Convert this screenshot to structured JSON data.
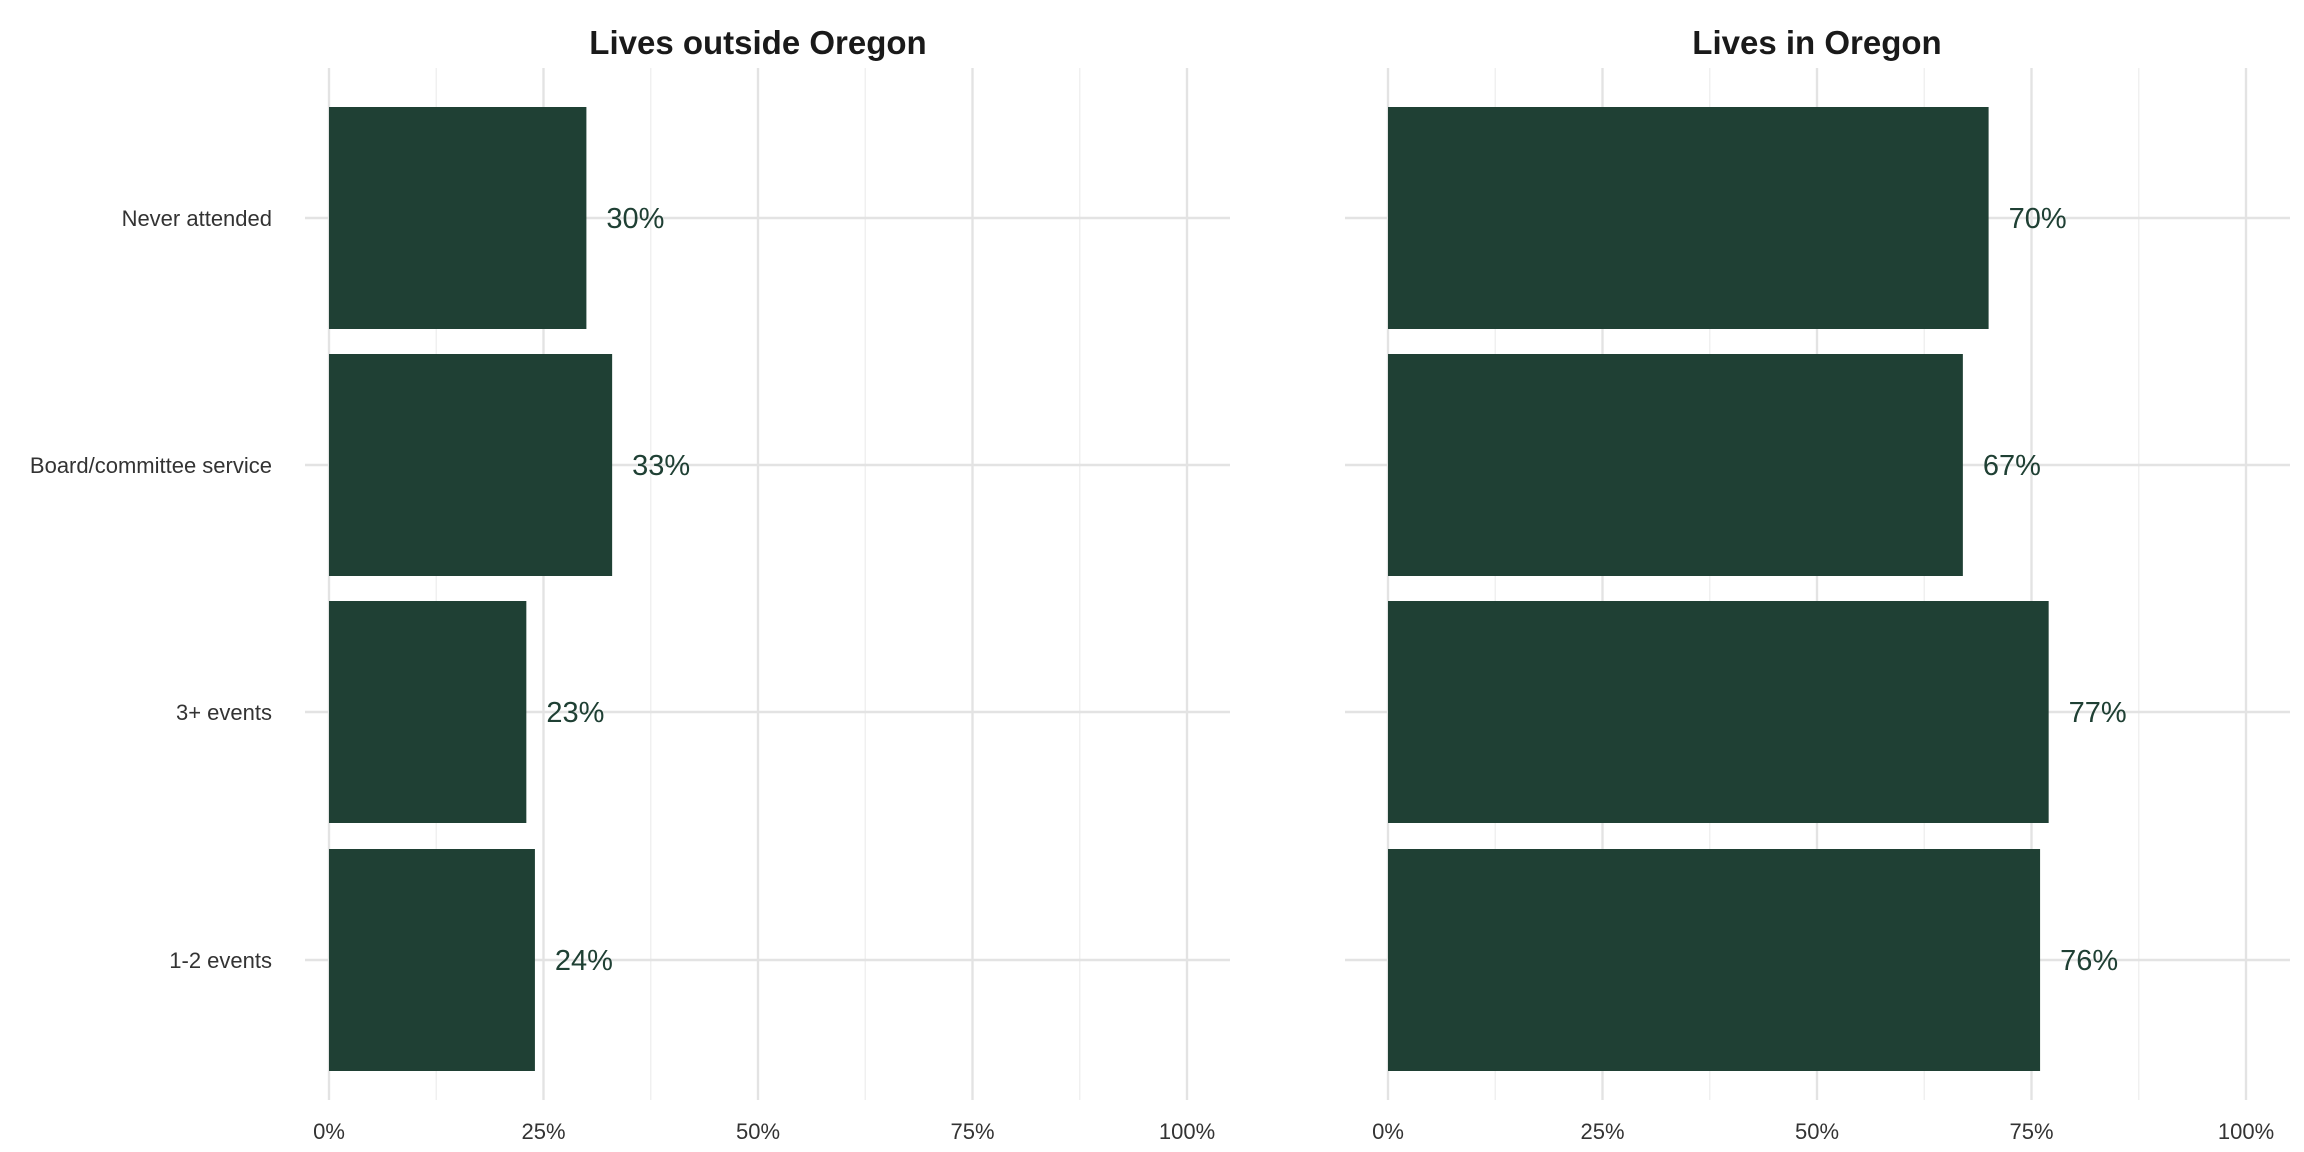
{
  "chart_data": {
    "type": "bar",
    "orientation": "horizontal",
    "categories": [
      "Never attended",
      "Board/committee service",
      "3+ events",
      "1-2 events"
    ],
    "xlim": [
      0,
      100
    ],
    "x_ticks": [
      0,
      25,
      50,
      75,
      100
    ],
    "x_tick_labels": [
      "0%",
      "25%",
      "50%",
      "75%",
      "100%"
    ],
    "grid": true,
    "bar_color": "#1f4034",
    "label_color": "#1f4034",
    "panels": [
      {
        "title": "Lives outside Oregon",
        "values": [
          30,
          33,
          23,
          24
        ],
        "value_labels": [
          "30%",
          "33%",
          "23%",
          "24%"
        ]
      },
      {
        "title": "Lives in Oregon",
        "values": [
          70,
          67,
          77,
          76
        ],
        "value_labels": [
          "70%",
          "67%",
          "77%",
          "76%"
        ]
      }
    ]
  }
}
